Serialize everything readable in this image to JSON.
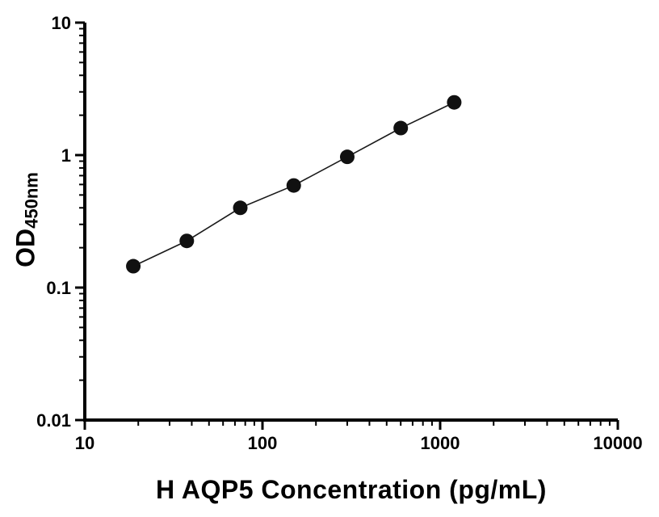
{
  "colors": {
    "axis": "#000000",
    "marker": "#111111",
    "line": "#1a1a1a",
    "background": "#ffffff"
  },
  "chart_data": {
    "type": "scatter",
    "title": "",
    "xlabel": "H AQP5 Concentration (pg/mL)",
    "ylabel": "OD",
    "ylabel_subscript": "450nm",
    "xscale": "log",
    "yscale": "log",
    "xlim": [
      10,
      10000
    ],
    "ylim": [
      0.01,
      10
    ],
    "x_major_ticks": [
      10,
      100,
      1000,
      10000
    ],
    "x_tick_labels": [
      "10",
      "100",
      "1000",
      "10000"
    ],
    "y_major_ticks": [
      0.01,
      0.1,
      1,
      10
    ],
    "y_tick_labels": [
      "0.01",
      "0.1",
      "1",
      "10"
    ],
    "minor_ticks": "log",
    "grid": false,
    "legend": false,
    "series": [
      {
        "x": [
          18.75,
          37.5,
          75,
          150,
          300,
          600,
          1200
        ],
        "y": [
          0.145,
          0.225,
          0.4,
          0.59,
          0.97,
          1.6,
          2.5
        ],
        "marker": "circle",
        "marker_size": 9,
        "line": true
      }
    ]
  }
}
